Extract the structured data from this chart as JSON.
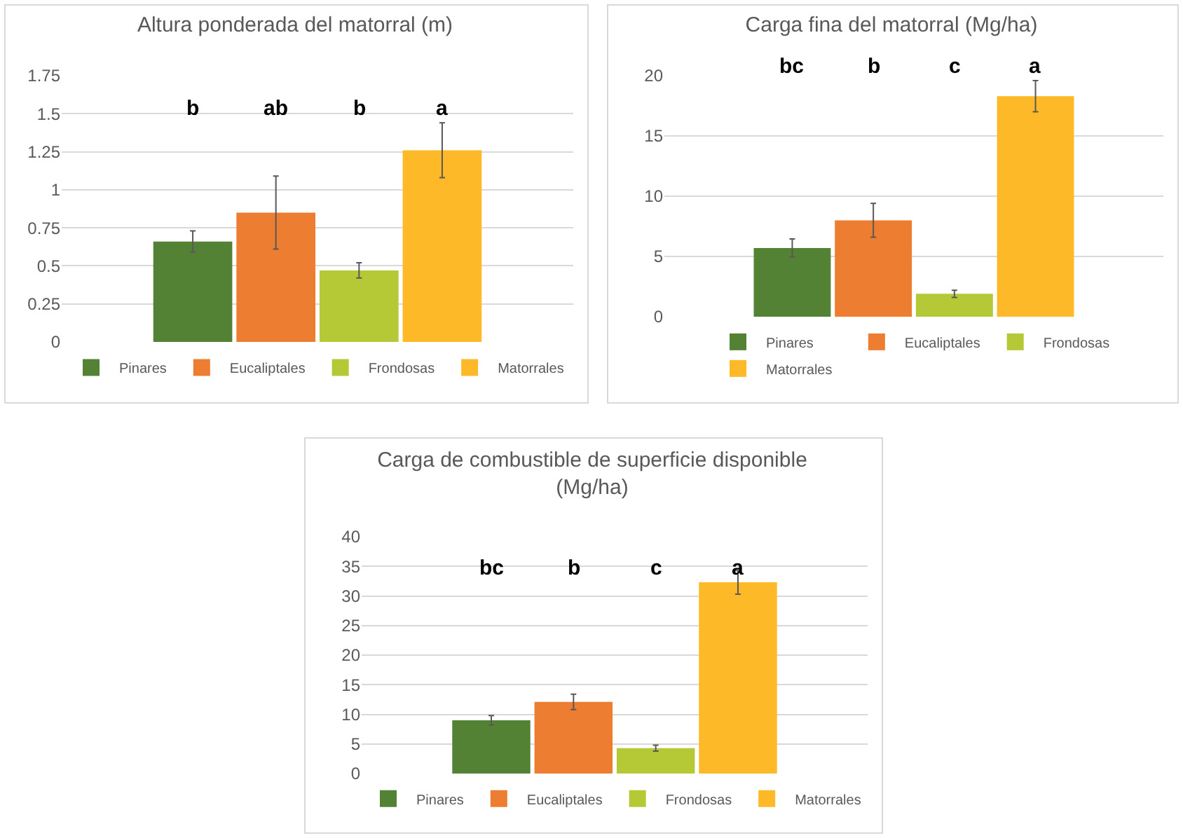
{
  "chart_data": [
    {
      "type": "bar",
      "title": "Altura ponderada del matorral (m)",
      "categories": [
        null
      ],
      "ylim": [
        0,
        1.75
      ],
      "yticks": [
        0,
        0.25,
        0.5,
        0.75,
        1,
        1.25,
        1.5,
        1.75
      ],
      "grid": "y",
      "legend": "bottom",
      "tick_labels": "y",
      "annotations": [
        "b",
        "ab",
        "b",
        "a"
      ],
      "series": [
        {
          "name": "Pinares",
          "color": "#548235",
          "values": [
            0.66
          ],
          "errors": [
            0.07
          ]
        },
        {
          "name": "Eucaliptales",
          "color": "#ed7d31",
          "values": [
            0.85
          ],
          "errors": [
            0.24
          ]
        },
        {
          "name": "Frondosas",
          "color": "#b4c935",
          "values": [
            0.47
          ],
          "errors": [
            0.05
          ]
        },
        {
          "name": "Matorrales",
          "color": "#fdb927",
          "values": [
            1.26
          ],
          "errors": [
            0.18
          ]
        }
      ]
    },
    {
      "type": "bar",
      "title": "Carga fina del matorral (Mg/ha)",
      "categories": [
        null
      ],
      "ylim": [
        0,
        20
      ],
      "yticks": [
        0,
        5,
        10,
        15,
        20
      ],
      "grid": "y",
      "legend": "bottom",
      "tick_labels": "y",
      "annotations": [
        "bc",
        "b",
        "c",
        "a"
      ],
      "series": [
        {
          "name": "Pinares",
          "color": "#548235",
          "values": [
            5.7
          ],
          "errors": [
            0.75
          ]
        },
        {
          "name": "Eucaliptales",
          "color": "#ed7d31",
          "values": [
            8.0
          ],
          "errors": [
            1.4
          ]
        },
        {
          "name": "Frondosas",
          "color": "#b4c935",
          "values": [
            1.9
          ],
          "errors": [
            0.3
          ]
        },
        {
          "name": "Matorrales",
          "color": "#fdb927",
          "values": [
            18.3
          ],
          "errors": [
            1.3
          ]
        }
      ]
    },
    {
      "type": "bar",
      "title": "Carga de combustible de superficie disponible\n(Mg/ha)",
      "categories": [
        null
      ],
      "ylim": [
        0,
        40
      ],
      "yticks": [
        0,
        5,
        10,
        15,
        20,
        25,
        30,
        35,
        40
      ],
      "grid": "y",
      "legend": "bottom",
      "tick_labels": "y",
      "annotations": [
        "bc",
        "b",
        "c",
        "a"
      ],
      "series": [
        {
          "name": "Pinares",
          "color": "#548235",
          "values": [
            9.0
          ],
          "errors": [
            0.8
          ]
        },
        {
          "name": "Eucaliptales",
          "color": "#ed7d31",
          "values": [
            12.1
          ],
          "errors": [
            1.3
          ]
        },
        {
          "name": "Frondosas",
          "color": "#b4c935",
          "values": [
            4.3
          ],
          "errors": [
            0.5
          ]
        },
        {
          "name": "Matorrales",
          "color": "#fdb927",
          "values": [
            32.3
          ],
          "errors": [
            2.0
          ]
        }
      ]
    }
  ]
}
